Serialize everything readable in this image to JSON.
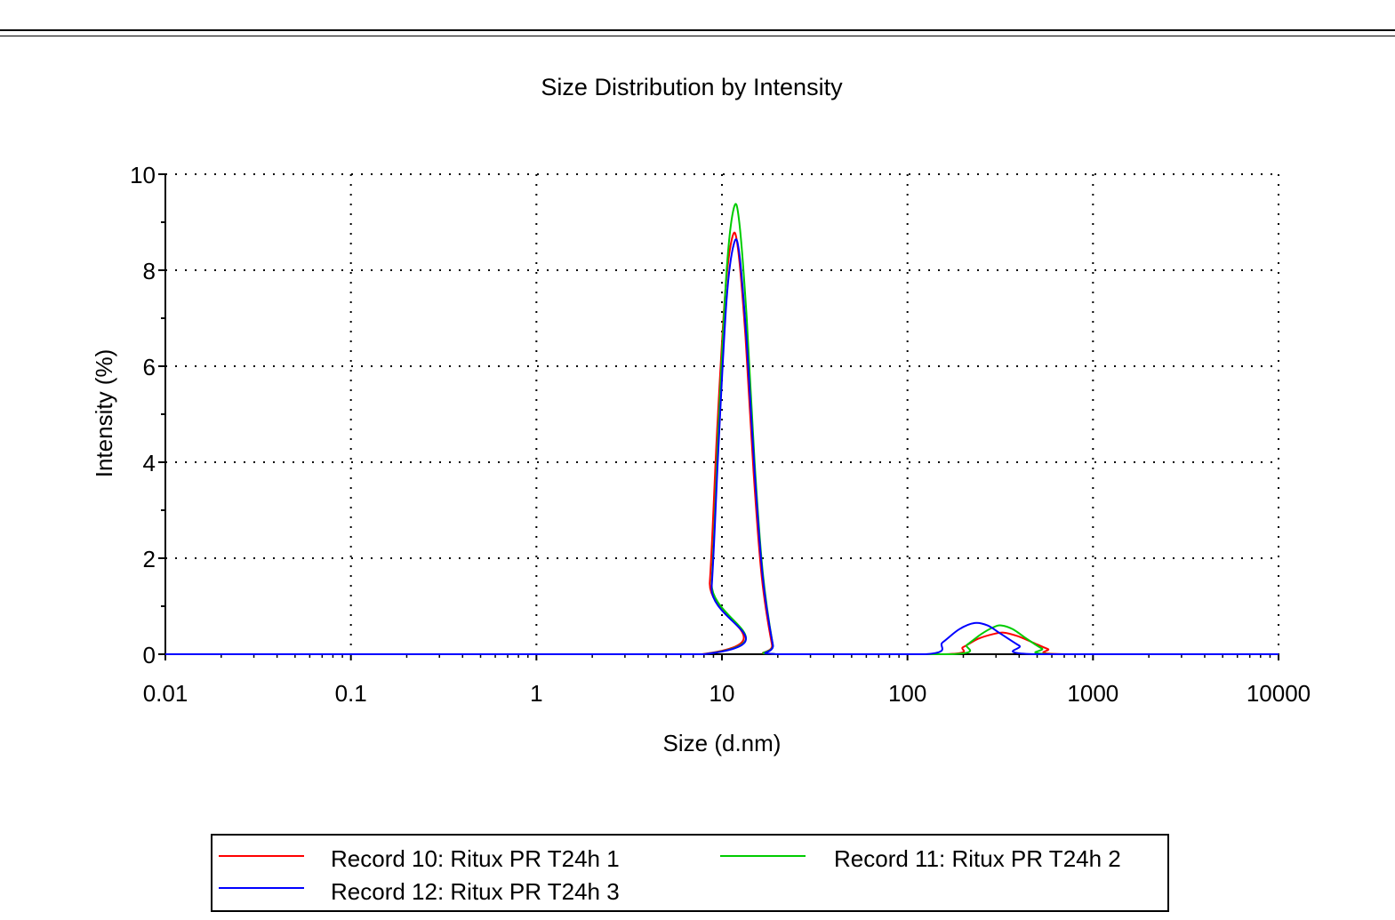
{
  "chart_data": {
    "type": "line",
    "title": "Size Distribution by Intensity",
    "xlabel": "Size (d.nm)",
    "ylabel": "Intensity (%)",
    "x_scale": "log",
    "xlim": [
      0.01,
      10000
    ],
    "ylim": [
      0,
      10
    ],
    "x_ticks": [
      "0.01",
      "0.1",
      "1",
      "10",
      "100",
      "1000",
      "10000"
    ],
    "y_ticks": [
      "0",
      "2",
      "4",
      "6",
      "8",
      "10"
    ],
    "grid": "dotted",
    "legend_position": "bottom",
    "series": [
      {
        "name": "Record 10: Ritux PR T24h 1",
        "color": "#ff0000",
        "points": [
          [
            0.01,
            0
          ],
          [
            7.8,
            0
          ],
          [
            8.6,
            1.5
          ],
          [
            9.4,
            4.6
          ],
          [
            10.4,
            7.5
          ],
          [
            11.4,
            8.7
          ],
          [
            12.2,
            8.45
          ],
          [
            13.4,
            6.6
          ],
          [
            14.8,
            3.8
          ],
          [
            16.4,
            1.6
          ],
          [
            18.6,
            0.2
          ],
          [
            19.6,
            0
          ],
          [
            160,
            0
          ],
          [
            200,
            0.15
          ],
          [
            240,
            0.32
          ],
          [
            290,
            0.42
          ],
          [
            330,
            0.45
          ],
          [
            390,
            0.38
          ],
          [
            470,
            0.25
          ],
          [
            570,
            0.11
          ],
          [
            700,
            0
          ],
          [
            10000,
            0
          ]
        ]
      },
      {
        "name": "Record 11: Ritux PR T24h 2",
        "color": "#00cc00",
        "points": [
          [
            0.01,
            0
          ],
          [
            8.0,
            0
          ],
          [
            8.8,
            1.5
          ],
          [
            9.6,
            4.8
          ],
          [
            10.6,
            8.0
          ],
          [
            11.6,
            9.3
          ],
          [
            12.4,
            9.0
          ],
          [
            13.6,
            7.0
          ],
          [
            15.0,
            4.0
          ],
          [
            16.6,
            1.7
          ],
          [
            18.8,
            0.2
          ],
          [
            19.8,
            0
          ],
          [
            175,
            0
          ],
          [
            210,
            0.2
          ],
          [
            250,
            0.42
          ],
          [
            290,
            0.56
          ],
          [
            320,
            0.6
          ],
          [
            370,
            0.52
          ],
          [
            440,
            0.32
          ],
          [
            530,
            0.12
          ],
          [
            630,
            0
          ],
          [
            10000,
            0
          ]
        ]
      },
      {
        "name": "Record 12: Ritux PR T24h 3",
        "color": "#0000ff",
        "points": [
          [
            0.01,
            0
          ],
          [
            8.0,
            0
          ],
          [
            8.8,
            1.4
          ],
          [
            9.6,
            4.4
          ],
          [
            10.6,
            7.4
          ],
          [
            11.6,
            8.55
          ],
          [
            12.4,
            8.35
          ],
          [
            13.6,
            6.5
          ],
          [
            15.0,
            3.8
          ],
          [
            16.6,
            1.6
          ],
          [
            18.8,
            0.2
          ],
          [
            19.8,
            0
          ],
          [
            125,
            0
          ],
          [
            155,
            0.25
          ],
          [
            190,
            0.52
          ],
          [
            230,
            0.65
          ],
          [
            270,
            0.6
          ],
          [
            320,
            0.42
          ],
          [
            400,
            0.18
          ],
          [
            490,
            0
          ],
          [
            10000,
            0
          ]
        ]
      }
    ]
  }
}
